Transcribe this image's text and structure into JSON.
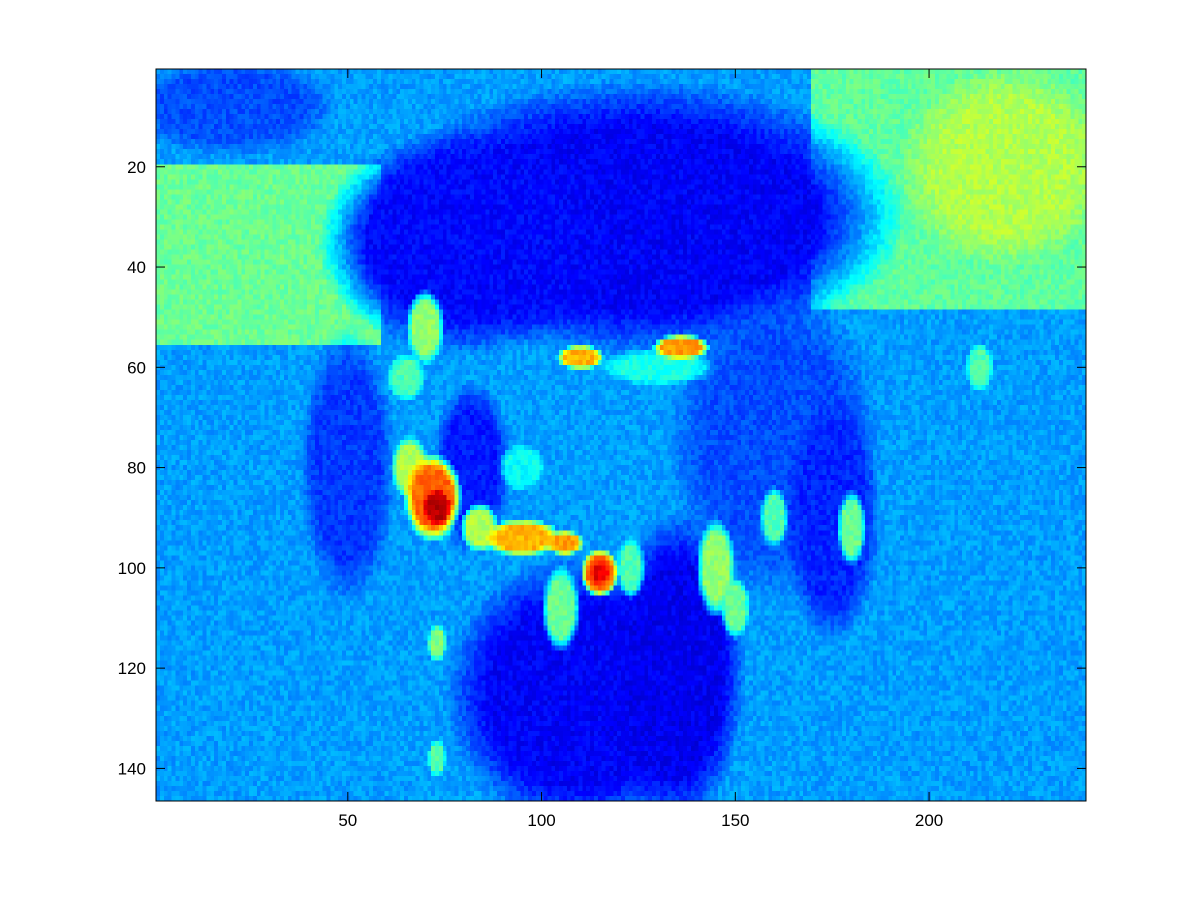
{
  "chart_data": {
    "type": "heatmap",
    "title": "",
    "xlabel": "",
    "ylabel": "",
    "xlim": [
      0.5,
      240.5
    ],
    "ylim": [
      146.5,
      0.5
    ],
    "y_axis_reversed": true,
    "colormap": "jet",
    "grid": false,
    "legend": "none",
    "x_ticks": [
      50,
      100,
      150,
      200
    ],
    "x_tick_labels": [
      "50",
      "100",
      "150",
      "200"
    ],
    "y_ticks": [
      20,
      40,
      60,
      80,
      100,
      120,
      140
    ],
    "y_tick_labels": [
      "20",
      "40",
      "60",
      "80",
      "100",
      "120",
      "140"
    ],
    "image_size": {
      "columns": 240,
      "rows": 146
    },
    "regions": [
      {
        "kind": "background",
        "x": [
          1,
          240
        ],
        "y": [
          1,
          146
        ],
        "value": 0.28
      },
      {
        "kind": "rect",
        "x": [
          1,
          58
        ],
        "y": [
          20,
          55
        ],
        "value": 0.48
      },
      {
        "kind": "rect",
        "x": [
          170,
          240
        ],
        "y": [
          1,
          48
        ],
        "value": 0.47
      },
      {
        "kind": "blob",
        "cx": 220,
        "cy": 20,
        "rx": 22,
        "ry": 16,
        "value": 0.55
      },
      {
        "kind": "blob",
        "cx": 125,
        "cy": 30,
        "rx": 55,
        "ry": 22,
        "value": 0.12
      },
      {
        "kind": "blob",
        "cx": 80,
        "cy": 35,
        "rx": 30,
        "ry": 18,
        "value": 0.13
      },
      {
        "kind": "blob",
        "cx": 20,
        "cy": 8,
        "rx": 22,
        "ry": 8,
        "value": 0.2
      },
      {
        "kind": "blob",
        "cx": 110,
        "cy": 125,
        "rx": 28,
        "ry": 22,
        "value": 0.12
      },
      {
        "kind": "blob",
        "cx": 135,
        "cy": 120,
        "rx": 14,
        "ry": 25,
        "value": 0.11
      },
      {
        "kind": "blob",
        "cx": 50,
        "cy": 80,
        "rx": 10,
        "ry": 22,
        "value": 0.18
      },
      {
        "kind": "blob",
        "cx": 82,
        "cy": 80,
        "rx": 8,
        "ry": 14,
        "value": 0.15
      },
      {
        "kind": "blob",
        "cx": 160,
        "cy": 75,
        "rx": 22,
        "ry": 25,
        "value": 0.2
      },
      {
        "kind": "blob",
        "cx": 175,
        "cy": 90,
        "rx": 10,
        "ry": 20,
        "value": 0.16
      },
      {
        "kind": "blob",
        "cx": 70,
        "cy": 52,
        "rx": 4,
        "ry": 6,
        "value": 0.52
      },
      {
        "kind": "blob",
        "cx": 65,
        "cy": 62,
        "rx": 4,
        "ry": 4,
        "value": 0.45
      },
      {
        "kind": "blob",
        "cx": 130,
        "cy": 60,
        "rx": 12,
        "ry": 3,
        "value": 0.4
      },
      {
        "kind": "blob",
        "cx": 95,
        "cy": 80,
        "rx": 5,
        "ry": 4,
        "value": 0.38
      },
      {
        "kind": "blob",
        "cx": 123,
        "cy": 100,
        "rx": 3,
        "ry": 5,
        "value": 0.45
      },
      {
        "kind": "blob",
        "cx": 145,
        "cy": 100,
        "rx": 4,
        "ry": 8,
        "value": 0.52
      },
      {
        "kind": "blob",
        "cx": 150,
        "cy": 108,
        "rx": 3,
        "ry": 5,
        "value": 0.48
      },
      {
        "kind": "blob",
        "cx": 160,
        "cy": 90,
        "rx": 3,
        "ry": 5,
        "value": 0.45
      },
      {
        "kind": "blob",
        "cx": 180,
        "cy": 92,
        "rx": 3,
        "ry": 6,
        "value": 0.48
      },
      {
        "kind": "blob",
        "cx": 105,
        "cy": 108,
        "rx": 4,
        "ry": 7,
        "value": 0.48
      },
      {
        "kind": "blob",
        "cx": 73,
        "cy": 115,
        "rx": 2,
        "ry": 3,
        "value": 0.5
      },
      {
        "kind": "blob",
        "cx": 73,
        "cy": 138,
        "rx": 2,
        "ry": 3,
        "value": 0.45
      },
      {
        "kind": "blob",
        "cx": 213,
        "cy": 60,
        "rx": 3,
        "ry": 4,
        "value": 0.45
      },
      {
        "kind": "blob",
        "cx": 66,
        "cy": 80,
        "rx": 4,
        "ry": 5,
        "value": 0.55
      },
      {
        "kind": "blob",
        "cx": 72,
        "cy": 86,
        "rx": 6,
        "ry": 7,
        "value": 0.78
      },
      {
        "kind": "blob",
        "cx": 73,
        "cy": 88,
        "rx": 3,
        "ry": 3,
        "value": 0.95
      },
      {
        "kind": "blob",
        "cx": 84,
        "cy": 92,
        "rx": 4,
        "ry": 4,
        "value": 0.55
      },
      {
        "kind": "blob",
        "cx": 95,
        "cy": 94,
        "rx": 8,
        "ry": 3,
        "value": 0.7
      },
      {
        "kind": "blob",
        "cx": 106,
        "cy": 95,
        "rx": 4,
        "ry": 2,
        "value": 0.72
      },
      {
        "kind": "blob",
        "cx": 115,
        "cy": 101,
        "rx": 4,
        "ry": 4,
        "value": 0.78
      },
      {
        "kind": "blob",
        "cx": 115,
        "cy": 101,
        "rx": 2,
        "ry": 2,
        "value": 0.9
      },
      {
        "kind": "blob",
        "cx": 110,
        "cy": 58,
        "rx": 5,
        "ry": 2,
        "value": 0.7
      },
      {
        "kind": "blob",
        "cx": 136,
        "cy": 56,
        "rx": 6,
        "ry": 2,
        "value": 0.72
      }
    ]
  }
}
